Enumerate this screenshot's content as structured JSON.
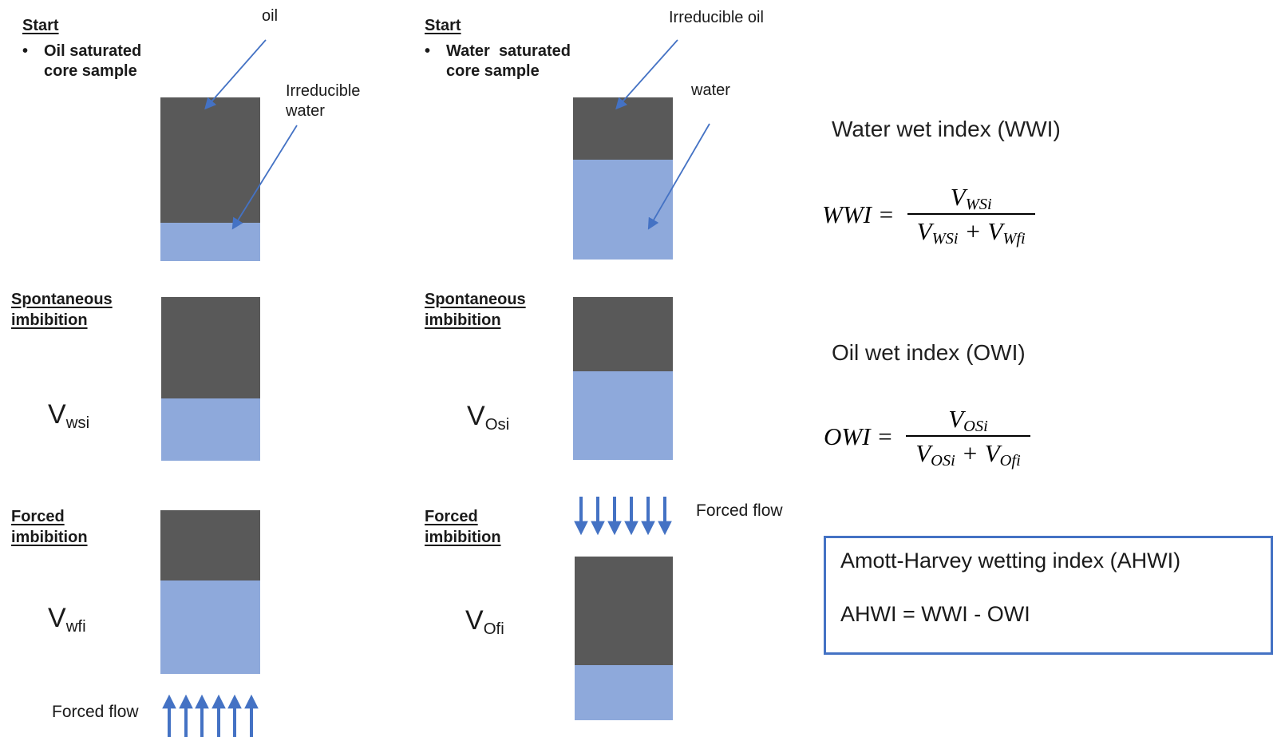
{
  "colors": {
    "oil": "#595959",
    "water": "#8ea9db",
    "arrow": "#4472C4",
    "box-border": "#4472C4",
    "text": "#1a1a1a"
  },
  "left": {
    "start_title": "Start",
    "bullet_glyph": "•",
    "start_bullet": "Oil saturated core sample",
    "oil_label": "oil",
    "irreducible_water_label": "Irreducible water",
    "spontaneous_title": "Spontaneous imbibition",
    "v_spont_base": "V",
    "v_spont_sub": "wsi",
    "forced_title": "Forced imbibition",
    "v_forced_base": "V",
    "v_forced_sub": "wfi",
    "forced_flow_label": "Forced flow"
  },
  "middle": {
    "start_title": "Start",
    "bullet_glyph": "•",
    "start_bullet": "Water  saturated core sample",
    "irreducible_oil_label": "Irreducible oil",
    "water_label": "water",
    "spontaneous_title": "Spontaneous imbibition",
    "v_spont_base": "V",
    "v_spont_sub": "Osi",
    "forced_title": "Forced imbibition",
    "v_forced_base": "V",
    "v_forced_sub": "Ofi",
    "forced_flow_label": "Forced flow"
  },
  "samples": {
    "oil_start": {
      "oil_pct": 76.5,
      "water_pct": 23.5
    },
    "oil_spontaneous": {
      "oil_pct": 62,
      "water_pct": 38
    },
    "oil_forced": {
      "oil_pct": 43,
      "water_pct": 57
    },
    "water_start": {
      "oil_pct": 38.5,
      "water_pct": 61.5
    },
    "water_spontaneous": {
      "oil_pct": 45.5,
      "water_pct": 54.5
    },
    "water_forced": {
      "oil_pct": 66.5,
      "water_pct": 33.5
    }
  },
  "right": {
    "wwi_title": "Water wet index (WWI)",
    "wwi": {
      "lhs": "WWI =",
      "num_base": "V",
      "num_sub": "WSi",
      "den1_base": "V",
      "den1_sub": "WSi",
      "plus": "+",
      "den2_base": "V",
      "den2_sub": "Wfi"
    },
    "owi_title": "Oil wet index (OWI)",
    "owi": {
      "lhs": "OWI =",
      "num_base": "V",
      "num_sub": "OSi",
      "den1_base": "V",
      "den1_sub": "OSi",
      "plus": "+",
      "den2_base": "V",
      "den2_sub": "Ofi"
    },
    "ahwi_title": "Amott-Harvey wetting index (AHWI)",
    "ahwi_equation": "AHWI = WWI - OWI"
  }
}
